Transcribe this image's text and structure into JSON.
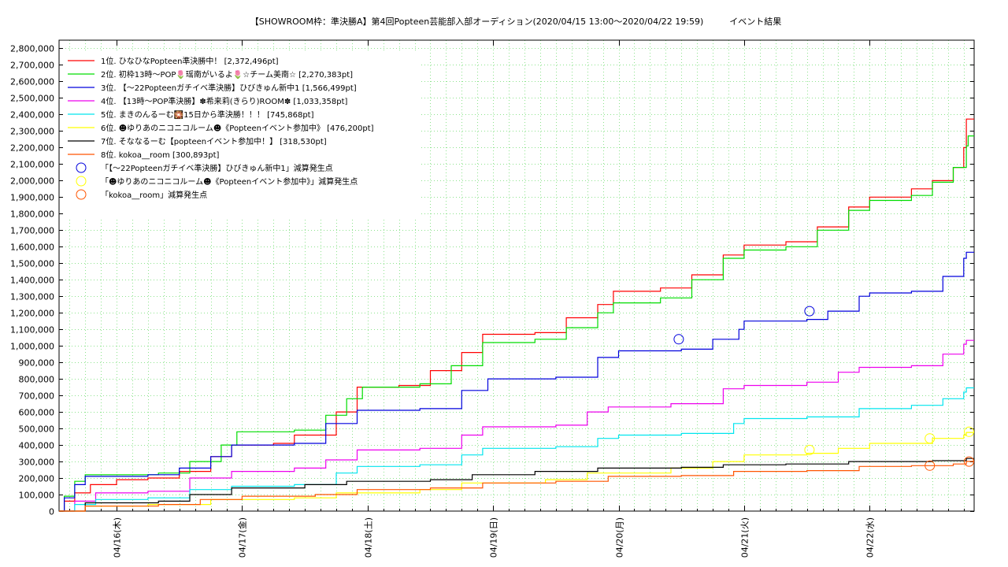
{
  "chart_data": {
    "type": "line",
    "title": "【SHOWROOM枠：準決勝A】第4回Popteen芸能部入部オーディション(2020/04/15 13:00～2020/04/22 19:59)　　　イベント結果",
    "xlabel": "",
    "ylabel": "",
    "x_tick_labels": [
      "04/16(木)",
      "04/17(金)",
      "04/18(土)",
      "04/19(日)",
      "04/20(月)",
      "04/21(火)",
      "04/22(水)"
    ],
    "xlim": [
      "2020-04-15 13:00",
      "2020-04-22 19:59"
    ],
    "x_ticks": [
      "2020-04-16 00:00",
      "2020-04-17 00:00",
      "2020-04-18 00:00",
      "2020-04-19 00:00",
      "2020-04-20 00:00",
      "2020-04-21 00:00",
      "2020-04-22 00:00"
    ],
    "ylim": [
      0,
      2850000
    ],
    "y_tick_step": 100000,
    "y_tick_labels": [
      "0",
      "100,000",
      "200,000",
      "300,000",
      "400,000",
      "500,000",
      "600,000",
      "700,000",
      "800,000",
      "900,000",
      "1,000,000",
      "1,100,000",
      "1,200,000",
      "1,300,000",
      "1,400,000",
      "1,500,000",
      "1,600,000",
      "1,700,000",
      "1,800,000",
      "1,900,000",
      "2,000,000",
      "2,100,000",
      "2,200,000",
      "2,300,000",
      "2,400,000",
      "2,500,000",
      "2,600,000",
      "2,700,000",
      "2,800,000"
    ],
    "grid": true,
    "legend_position": "top-left",
    "series": [
      {
        "name": "1位. ひなひなPopteen準決勝中！ [2,372,496pt]",
        "color": "#ff0000",
        "points": [
          [
            "2020-04-15 13:00",
            0
          ],
          [
            "2020-04-15 14:00",
            60000
          ],
          [
            "2020-04-15 16:00",
            110000
          ],
          [
            "2020-04-15 19:00",
            160000
          ],
          [
            "2020-04-16 00:00",
            190000
          ],
          [
            "2020-04-16 06:00",
            200000
          ],
          [
            "2020-04-16 12:00",
            240000
          ],
          [
            "2020-04-16 18:00",
            330000
          ],
          [
            "2020-04-16 22:00",
            400000
          ],
          [
            "2020-04-17 06:00",
            410000
          ],
          [
            "2020-04-17 10:00",
            460000
          ],
          [
            "2020-04-17 18:00",
            600000
          ],
          [
            "2020-04-17 22:00",
            750000
          ],
          [
            "2020-04-18 06:00",
            760000
          ],
          [
            "2020-04-18 12:00",
            850000
          ],
          [
            "2020-04-18 18:00",
            960000
          ],
          [
            "2020-04-18 22:00",
            1070000
          ],
          [
            "2020-04-19 08:00",
            1080000
          ],
          [
            "2020-04-19 14:00",
            1170000
          ],
          [
            "2020-04-19 20:00",
            1250000
          ],
          [
            "2020-04-19 23:00",
            1330000
          ],
          [
            "2020-04-20 08:00",
            1350000
          ],
          [
            "2020-04-20 14:00",
            1430000
          ],
          [
            "2020-04-20 20:00",
            1550000
          ],
          [
            "2020-04-21 00:00",
            1610000
          ],
          [
            "2020-04-21 08:00",
            1630000
          ],
          [
            "2020-04-21 14:00",
            1720000
          ],
          [
            "2020-04-21 20:00",
            1840000
          ],
          [
            "2020-04-22 00:00",
            1900000
          ],
          [
            "2020-04-22 08:00",
            1950000
          ],
          [
            "2020-04-22 12:00",
            2000000
          ],
          [
            "2020-04-22 16:00",
            2080000
          ],
          [
            "2020-04-22 18:00",
            2200000
          ],
          [
            "2020-04-22 18:30",
            2372496
          ],
          [
            "2020-04-22 19:59",
            2372496
          ]
        ]
      },
      {
        "name": "2位. 初枠13時〜POP🌷瑶南がいるよ🌷☆チーム美南☆ [2,270,383pt]",
        "color": "#00dd00",
        "points": [
          [
            "2020-04-15 13:00",
            0
          ],
          [
            "2020-04-15 14:00",
            90000
          ],
          [
            "2020-04-15 16:00",
            180000
          ],
          [
            "2020-04-15 18:00",
            220000
          ],
          [
            "2020-04-16 08:00",
            230000
          ],
          [
            "2020-04-16 14:00",
            300000
          ],
          [
            "2020-04-16 20:00",
            400000
          ],
          [
            "2020-04-16 23:00",
            480000
          ],
          [
            "2020-04-17 10:00",
            490000
          ],
          [
            "2020-04-17 16:00",
            580000
          ],
          [
            "2020-04-17 20:00",
            680000
          ],
          [
            "2020-04-17 23:00",
            750000
          ],
          [
            "2020-04-18 10:00",
            770000
          ],
          [
            "2020-04-18 16:00",
            880000
          ],
          [
            "2020-04-18 22:00",
            1020000
          ],
          [
            "2020-04-19 08:00",
            1040000
          ],
          [
            "2020-04-19 14:00",
            1110000
          ],
          [
            "2020-04-19 20:00",
            1200000
          ],
          [
            "2020-04-19 23:00",
            1260000
          ],
          [
            "2020-04-20 08:00",
            1290000
          ],
          [
            "2020-04-20 14:00",
            1400000
          ],
          [
            "2020-04-20 20:00",
            1530000
          ],
          [
            "2020-04-21 00:00",
            1580000
          ],
          [
            "2020-04-21 08:00",
            1600000
          ],
          [
            "2020-04-21 14:00",
            1700000
          ],
          [
            "2020-04-21 20:00",
            1820000
          ],
          [
            "2020-04-22 00:00",
            1880000
          ],
          [
            "2020-04-22 08:00",
            1910000
          ],
          [
            "2020-04-22 12:00",
            1990000
          ],
          [
            "2020-04-22 16:00",
            2080000
          ],
          [
            "2020-04-22 18:30",
            2210000
          ],
          [
            "2020-04-22 18:50",
            2270383
          ],
          [
            "2020-04-22 19:59",
            2270383
          ]
        ]
      },
      {
        "name": "3位. 【〜22Popteenガチイベ準決勝】ひびきゅん新中1 [1,566,499pt]",
        "color": "#0000dd",
        "points": [
          [
            "2020-04-15 13:00",
            0
          ],
          [
            "2020-04-15 14:00",
            80000
          ],
          [
            "2020-04-15 16:00",
            160000
          ],
          [
            "2020-04-15 18:00",
            210000
          ],
          [
            "2020-04-16 06:00",
            220000
          ],
          [
            "2020-04-16 12:00",
            260000
          ],
          [
            "2020-04-16 18:00",
            330000
          ],
          [
            "2020-04-16 22:00",
            400000
          ],
          [
            "2020-04-17 10:00",
            410000
          ],
          [
            "2020-04-17 16:00",
            530000
          ],
          [
            "2020-04-17 22:00",
            610000
          ],
          [
            "2020-04-18 10:00",
            620000
          ],
          [
            "2020-04-18 18:00",
            730000
          ],
          [
            "2020-04-18 23:00",
            800000
          ],
          [
            "2020-04-19 12:00",
            810000
          ],
          [
            "2020-04-19 20:00",
            930000
          ],
          [
            "2020-04-20 00:00",
            970000
          ],
          [
            "2020-04-20 12:00",
            980000
          ],
          [
            "2020-04-20 18:00",
            1040000
          ],
          [
            "2020-04-20 23:00",
            1100000
          ],
          [
            "2020-04-21 00:00",
            1150000
          ],
          [
            "2020-04-21 12:00",
            1160000
          ],
          [
            "2020-04-21 16:00",
            1210000
          ],
          [
            "2020-04-21 22:00",
            1300000
          ],
          [
            "2020-04-22 00:00",
            1320000
          ],
          [
            "2020-04-22 08:00",
            1330000
          ],
          [
            "2020-04-22 14:00",
            1420000
          ],
          [
            "2020-04-22 18:00",
            1530000
          ],
          [
            "2020-04-22 18:30",
            1566499
          ],
          [
            "2020-04-22 19:59",
            1566499
          ]
        ]
      },
      {
        "name": "4位. 【13時〜POP準決勝】✽希来莉(きらり)ROOM✽ [1,033,358pt]",
        "color": "#ee00ee",
        "points": [
          [
            "2020-04-15 13:00",
            0
          ],
          [
            "2020-04-15 16:00",
            60000
          ],
          [
            "2020-04-15 20:00",
            110000
          ],
          [
            "2020-04-16 06:00",
            120000
          ],
          [
            "2020-04-16 14:00",
            200000
          ],
          [
            "2020-04-16 22:00",
            240000
          ],
          [
            "2020-04-17 10:00",
            260000
          ],
          [
            "2020-04-17 16:00",
            310000
          ],
          [
            "2020-04-17 22:00",
            370000
          ],
          [
            "2020-04-18 10:00",
            380000
          ],
          [
            "2020-04-18 18:00",
            460000
          ],
          [
            "2020-04-18 22:00",
            510000
          ],
          [
            "2020-04-19 12:00",
            520000
          ],
          [
            "2020-04-19 18:00",
            600000
          ],
          [
            "2020-04-19 22:00",
            630000
          ],
          [
            "2020-04-20 10:00",
            650000
          ],
          [
            "2020-04-20 20:00",
            740000
          ],
          [
            "2020-04-21 00:00",
            760000
          ],
          [
            "2020-04-21 12:00",
            780000
          ],
          [
            "2020-04-21 18:00",
            840000
          ],
          [
            "2020-04-21 22:00",
            870000
          ],
          [
            "2020-04-22 08:00",
            880000
          ],
          [
            "2020-04-22 14:00",
            950000
          ],
          [
            "2020-04-22 18:00",
            1010000
          ],
          [
            "2020-04-22 18:30",
            1033358
          ],
          [
            "2020-04-22 19:59",
            1033358
          ]
        ]
      },
      {
        "name": "5位. まきのんるーむ🎇15日から準決勝！！！ [745,868pt]",
        "color": "#00e5ee",
        "points": [
          [
            "2020-04-15 13:00",
            0
          ],
          [
            "2020-04-15 16:00",
            40000
          ],
          [
            "2020-04-15 20:00",
            70000
          ],
          [
            "2020-04-16 06:00",
            80000
          ],
          [
            "2020-04-16 14:00",
            130000
          ],
          [
            "2020-04-16 22:00",
            150000
          ],
          [
            "2020-04-17 10:00",
            160000
          ],
          [
            "2020-04-17 18:00",
            230000
          ],
          [
            "2020-04-17 22:00",
            270000
          ],
          [
            "2020-04-18 10:00",
            280000
          ],
          [
            "2020-04-18 18:00",
            340000
          ],
          [
            "2020-04-18 22:00",
            380000
          ],
          [
            "2020-04-19 12:00",
            390000
          ],
          [
            "2020-04-19 20:00",
            440000
          ],
          [
            "2020-04-20 00:00",
            460000
          ],
          [
            "2020-04-20 12:00",
            470000
          ],
          [
            "2020-04-20 22:00",
            530000
          ],
          [
            "2020-04-21 00:00",
            560000
          ],
          [
            "2020-04-21 12:00",
            570000
          ],
          [
            "2020-04-21 22:00",
            620000
          ],
          [
            "2020-04-22 08:00",
            640000
          ],
          [
            "2020-04-22 14:00",
            680000
          ],
          [
            "2020-04-22 18:00",
            720000
          ],
          [
            "2020-04-22 18:30",
            745868
          ],
          [
            "2020-04-22 19:59",
            745868
          ]
        ]
      },
      {
        "name": "6位. ☻ゆりあのニコニコルーム☻《Popteenイベント参加中》 [476,200pt]",
        "color": "#ffff00",
        "points": [
          [
            "2020-04-15 13:00",
            0
          ],
          [
            "2020-04-15 18:00",
            30000
          ],
          [
            "2020-04-16 06:00",
            40000
          ],
          [
            "2020-04-16 18:00",
            70000
          ],
          [
            "2020-04-17 10:00",
            80000
          ],
          [
            "2020-04-17 18:00",
            110000
          ],
          [
            "2020-04-18 10:00",
            130000
          ],
          [
            "2020-04-18 18:00",
            170000
          ],
          [
            "2020-04-19 10:00",
            190000
          ],
          [
            "2020-04-19 18:00",
            230000
          ],
          [
            "2020-04-20 10:00",
            260000
          ],
          [
            "2020-04-20 18:00",
            300000
          ],
          [
            "2020-04-21 00:00",
            340000
          ],
          [
            "2020-04-21 12:00",
            350000
          ],
          [
            "2020-04-21 18:00",
            380000
          ],
          [
            "2020-04-22 00:00",
            410000
          ],
          [
            "2020-04-22 12:00",
            440000
          ],
          [
            "2020-04-22 18:00",
            460000
          ],
          [
            "2020-04-22 18:30",
            476200
          ],
          [
            "2020-04-22 19:59",
            476200
          ]
        ]
      },
      {
        "name": "7位. そななるーむ【popteenイベント参加中！】 [318,530pt]",
        "color": "#000000",
        "points": [
          [
            "2020-04-15 13:00",
            0
          ],
          [
            "2020-04-15 18:00",
            50000
          ],
          [
            "2020-04-16 08:00",
            60000
          ],
          [
            "2020-04-16 14:00",
            100000
          ],
          [
            "2020-04-16 22:00",
            140000
          ],
          [
            "2020-04-17 12:00",
            160000
          ],
          [
            "2020-04-17 20:00",
            180000
          ],
          [
            "2020-04-18 12:00",
            190000
          ],
          [
            "2020-04-18 20:00",
            220000
          ],
          [
            "2020-04-19 08:00",
            240000
          ],
          [
            "2020-04-19 20:00",
            260000
          ],
          [
            "2020-04-20 12:00",
            265000
          ],
          [
            "2020-04-20 20:00",
            280000
          ],
          [
            "2020-04-21 08:00",
            285000
          ],
          [
            "2020-04-21 20:00",
            300000
          ],
          [
            "2020-04-22 12:00",
            305000
          ],
          [
            "2020-04-22 18:30",
            318530
          ],
          [
            "2020-04-22 19:59",
            318530
          ]
        ]
      },
      {
        "name": "8位. kokoa__room [300,893pt]",
        "color": "#ff5500",
        "points": [
          [
            "2020-04-15 13:00",
            0
          ],
          [
            "2020-04-15 18:00",
            30000
          ],
          [
            "2020-04-16 08:00",
            40000
          ],
          [
            "2020-04-16 16:00",
            70000
          ],
          [
            "2020-04-17 00:00",
            90000
          ],
          [
            "2020-04-17 14:00",
            100000
          ],
          [
            "2020-04-17 22:00",
            130000
          ],
          [
            "2020-04-18 12:00",
            140000
          ],
          [
            "2020-04-18 22:00",
            170000
          ],
          [
            "2020-04-19 12:00",
            180000
          ],
          [
            "2020-04-19 22:00",
            210000
          ],
          [
            "2020-04-20 12:00",
            215000
          ],
          [
            "2020-04-20 22:00",
            240000
          ],
          [
            "2020-04-21 12:00",
            245000
          ],
          [
            "2020-04-21 22:00",
            270000
          ],
          [
            "2020-04-22 08:00",
            275000
          ],
          [
            "2020-04-22 16:00",
            285000
          ],
          [
            "2020-04-22 18:30",
            300893
          ],
          [
            "2020-04-22 19:59",
            300893
          ]
        ]
      }
    ],
    "markers": [
      {
        "name": "「【〜22Popteenガチイベ準決勝】ひびきゅん新中1」減算発生点",
        "color": "#0000dd",
        "points": [
          [
            "2020-04-20 11:30",
            1040000
          ],
          [
            "2020-04-21 12:30",
            1210000
          ]
        ]
      },
      {
        "name": "「☻ゆりあのニコニコルーム☻《Popteenイベント参加中》」減算発生点",
        "color": "#ffff00",
        "points": [
          [
            "2020-04-21 12:30",
            370000
          ],
          [
            "2020-04-22 11:30",
            440000
          ],
          [
            "2020-04-22 19:00",
            480000
          ]
        ]
      },
      {
        "name": "「kokoa__room」減算発生点",
        "color": "#ff5500",
        "points": [
          [
            "2020-04-22 11:30",
            275000
          ],
          [
            "2020-04-22 19:00",
            300000
          ]
        ]
      }
    ]
  }
}
